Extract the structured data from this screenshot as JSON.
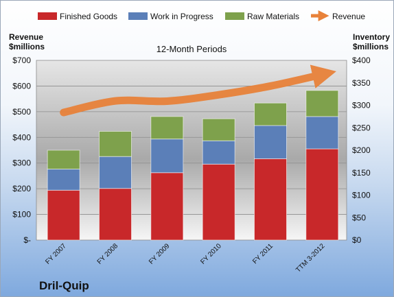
{
  "chart_data": {
    "type": "bar",
    "stacked": true,
    "title": "12-Month Periods",
    "company": "Dril-Quip",
    "categories": [
      "FY 2007",
      "FY 2008",
      "FY 2009",
      "FY 2010",
      "FY 2011",
      "TTM 3-2012"
    ],
    "series": [
      {
        "name": "Finished Goods",
        "axis": "right",
        "color": "#c8282a",
        "values": [
          111,
          115,
          150,
          169,
          181,
          203
        ]
      },
      {
        "name": "Work in Progress",
        "axis": "right",
        "color": "#5b7fb8",
        "values": [
          47,
          71,
          75,
          52,
          74,
          72
        ]
      },
      {
        "name": "Raw Materials",
        "axis": "right",
        "color": "#7ea14c",
        "values": [
          42,
          56,
          50,
          49,
          50,
          58
        ]
      },
      {
        "name": "Revenue",
        "axis": "left",
        "color": "#e8823a",
        "type": "line",
        "values": [
          497,
          542,
          541,
          566,
          600,
          645
        ]
      }
    ],
    "left_axis": {
      "label_line1": "Revenue",
      "label_line2": "$millions",
      "ylim": [
        0,
        700
      ],
      "ticks": [
        0,
        100,
        200,
        300,
        400,
        500,
        600,
        700
      ],
      "tick_labels": [
        "$-",
        "$100",
        "$200",
        "$300",
        "$400",
        "$500",
        "$600",
        "$700"
      ]
    },
    "right_axis": {
      "label_line1": "Inventory",
      "label_line2": "$millions",
      "ylim": [
        0,
        400
      ],
      "ticks": [
        0,
        50,
        100,
        150,
        200,
        250,
        300,
        350,
        400
      ],
      "tick_labels": [
        "$0",
        "$50",
        "$100",
        "$150",
        "$200",
        "$250",
        "$300",
        "$350",
        "$400"
      ]
    },
    "grid": true,
    "legend": "top"
  }
}
